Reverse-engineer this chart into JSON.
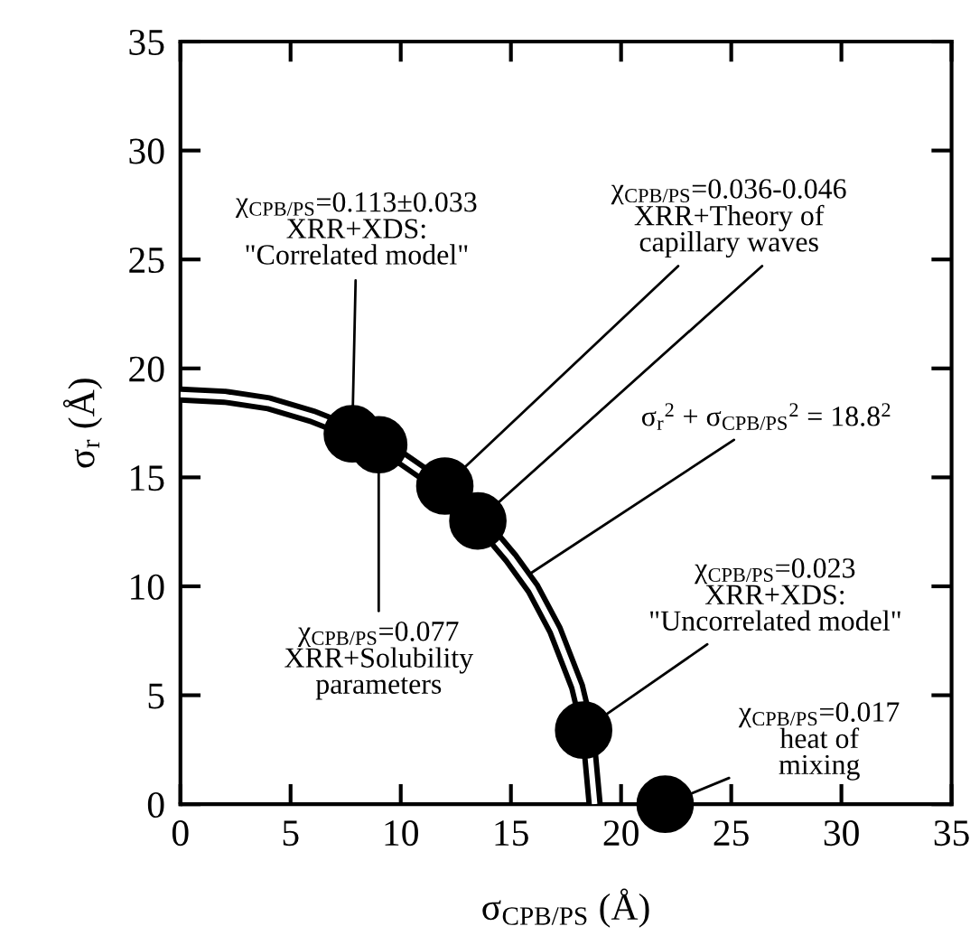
{
  "chart_data": {
    "type": "scatter",
    "xlabel": "σ$_{CPB/PS}$ (Å)",
    "ylabel": "σ$_{r}$ (Å)",
    "xlim": [
      0,
      35
    ],
    "ylim": [
      0,
      35
    ],
    "xticks": [
      0,
      5,
      10,
      15,
      20,
      25,
      30,
      35
    ],
    "yticks": [
      0,
      5,
      10,
      15,
      20,
      25,
      30,
      35
    ],
    "grid": false,
    "legend": false,
    "marker": "circle",
    "series": [
      {
        "color": "#000000",
        "x": [
          7.8,
          9,
          12,
          13.5,
          18.3,
          22
        ],
        "values": [
          17,
          16.5,
          14.6,
          13,
          3.4,
          0
        ]
      },
      {
        "type": "line",
        "color": "#000000",
        "marker": "none",
        "line_style": "solid",
        "x": [
          0,
          2,
          4,
          6,
          8,
          10,
          12,
          14,
          15,
          16,
          17,
          18,
          18.5,
          18.8
        ],
        "values": [
          18.8,
          18.7,
          18.4,
          17.8,
          17,
          15.9,
          14.5,
          12.5,
          11.3,
          9.9,
          8,
          5.4,
          3.3,
          0
        ]
      }
    ],
    "annotations": [
      {
        "text": "χ$_{CPB/PS}$=0.113±0.033\nXRR+XDS:\n\"Correlated model\"",
        "x": 7.8,
        "y": 17
      },
      {
        "text": "χ$_{CPB/PS}$=0.036-0.046\nXRR+Theory of\ncapillary waves",
        "x": 12,
        "y": 14.6
      },
      {
        "text": "σ$_{r}$$^{2}$ + σ$_{CPB/PS}$$^{2}$ = 18.8$^{2}$",
        "x": 15.9,
        "y": 10.6
      },
      {
        "text": "χ$_{CPB/PS}$=0.023\nXRR+XDS:\n\"Uncorrelated model\"",
        "x": 18.3,
        "y": 3.4
      },
      {
        "text": "χ$_{CPB/PS}$=0.017\nheat of\nmixing",
        "x": 22,
        "y": 0
      },
      {
        "text": "χ$_{CPB/PS}$=0.077\nXRR+Solubility\nparameters",
        "x": 9,
        "y": 16.5
      }
    ]
  }
}
